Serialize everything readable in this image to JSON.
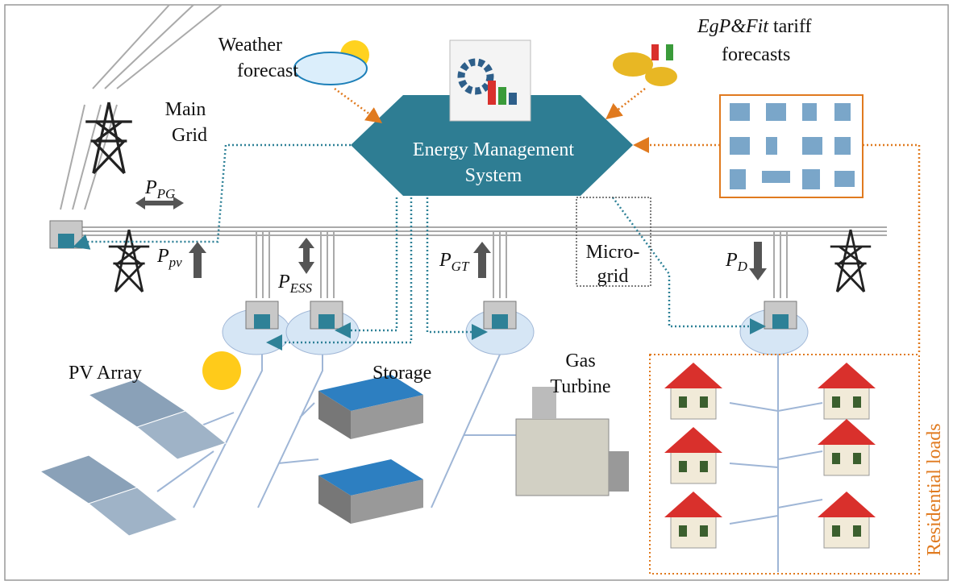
{
  "weather_forecast": [
    "Weather",
    "forecast"
  ],
  "tariff_forecast": {
    "italic": "EgP&Fit",
    "text": " tariff",
    "line2": "forecasts"
  },
  "main_grid": [
    "Main",
    "Grid"
  ],
  "ems": [
    "Energy Management",
    "System"
  ],
  "power_flows": [
    {
      "symbol": "P",
      "subscript": "PG"
    },
    {
      "symbol": "P",
      "subscript": "pv"
    },
    {
      "symbol": "P",
      "subscript": "ESS"
    },
    {
      "symbol": "P",
      "subscript": "GT"
    },
    {
      "symbol": "P",
      "subscript": "D"
    }
  ],
  "microgrid": [
    "Micro-",
    "grid"
  ],
  "pv_array": "PV Array",
  "storage": "Storage",
  "gas_turbine": [
    "Gas",
    "Turbine"
  ],
  "residential_loads": "Residential loads"
}
